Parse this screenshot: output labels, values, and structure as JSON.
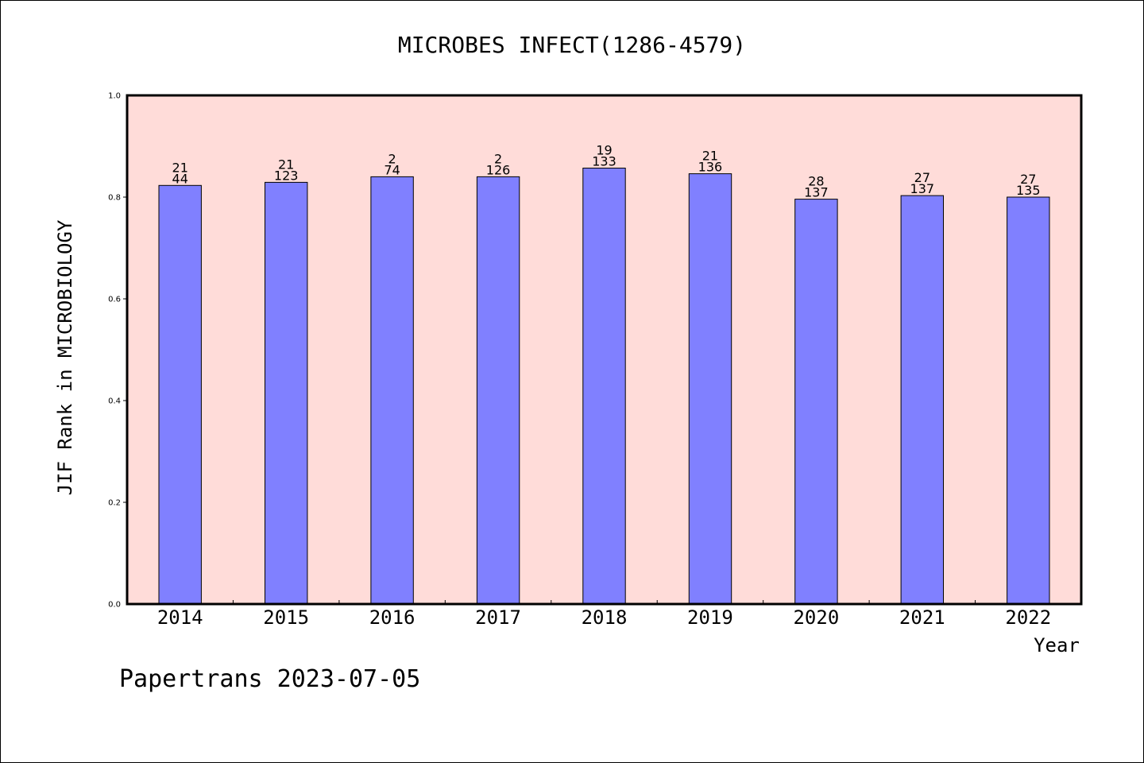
{
  "chart_data": {
    "type": "bar",
    "title": "MICROBES INFECT(1286-4579)",
    "xlabel": "Year",
    "ylabel": "JIF Rank in MICROBIOLOGY",
    "ylim": [
      0,
      1.0
    ],
    "yticks": [
      "0.0",
      "0.2",
      "0.4",
      "0.6",
      "0.8",
      "1.0"
    ],
    "grid": false,
    "categories": [
      "2014",
      "2015",
      "2016",
      "2017",
      "2018",
      "2019",
      "2020",
      "2021",
      "2022"
    ],
    "values": [
      0.823,
      0.829,
      0.84,
      0.84,
      0.857,
      0.846,
      0.796,
      0.803,
      0.8
    ],
    "rank_labels": [
      "21",
      "21",
      "2",
      "2",
      "19",
      "21",
      "28",
      "27",
      "27"
    ],
    "total_labels": [
      "44",
      "123",
      "74",
      "126",
      "133",
      "136",
      "137",
      "137",
      "135"
    ],
    "colors": {
      "bar": "#8080ff",
      "plot_background": "#ffdcd9"
    }
  },
  "footer": {
    "text": "Papertrans 2023-07-05"
  }
}
